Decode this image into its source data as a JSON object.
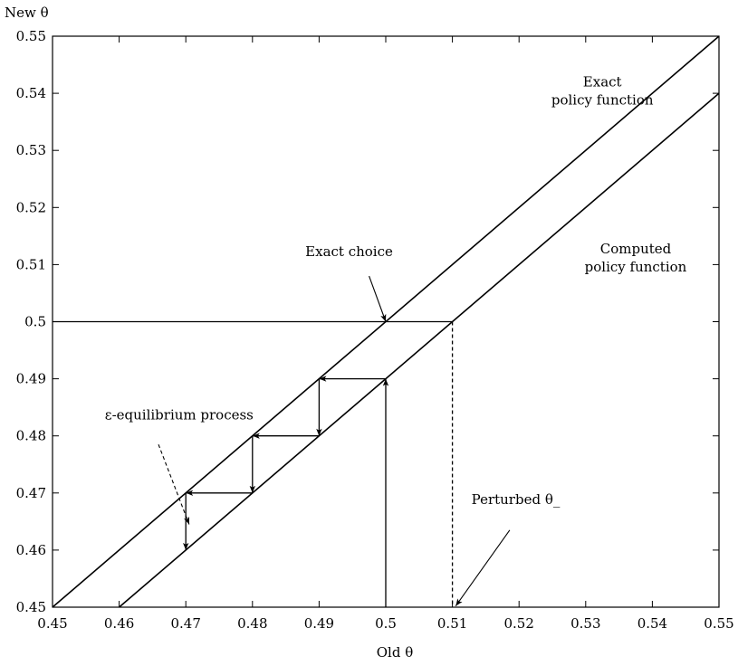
{
  "chart_data": {
    "type": "line",
    "xlabel": "Old θ",
    "ylabel": "New θ",
    "xlim": [
      0.45,
      0.55
    ],
    "ylim": [
      0.45,
      0.55
    ],
    "x_ticks": [
      "0.45",
      "0.46",
      "0.47",
      "0.48",
      "0.49",
      "0.5",
      "0.51",
      "0.52",
      "0.53",
      "0.54",
      "0.55"
    ],
    "y_ticks": [
      "0.45",
      "0.46",
      "0.47",
      "0.48",
      "0.49",
      "0.5",
      "0.51",
      "0.52",
      "0.53",
      "0.54",
      "0.55"
    ],
    "grid": false,
    "series": [
      {
        "name": "Exact policy function",
        "x": [
          0.45,
          0.55
        ],
        "y": [
          0.45,
          0.55
        ]
      },
      {
        "name": "Computed policy function",
        "x": [
          0.46,
          0.55
        ],
        "y": [
          0.45,
          0.54
        ]
      }
    ],
    "reference_lines": [
      {
        "kind": "horizontal",
        "style": "solid",
        "from": [
          0.45,
          0.5
        ],
        "to": [
          0.51,
          0.5
        ]
      },
      {
        "kind": "vertical",
        "style": "dashed",
        "from": [
          0.51,
          0.5
        ],
        "to": [
          0.51,
          0.45
        ]
      }
    ],
    "process_arrows": [
      {
        "from": [
          0.5,
          0.45
        ],
        "to": [
          0.5,
          0.49
        ]
      },
      {
        "from": [
          0.5,
          0.49
        ],
        "to": [
          0.49,
          0.49
        ]
      },
      {
        "from": [
          0.49,
          0.49
        ],
        "to": [
          0.49,
          0.48
        ]
      },
      {
        "from": [
          0.49,
          0.48
        ],
        "to": [
          0.48,
          0.48
        ]
      },
      {
        "from": [
          0.48,
          0.48
        ],
        "to": [
          0.48,
          0.47
        ]
      },
      {
        "from": [
          0.48,
          0.47
        ],
        "to": [
          0.47,
          0.47
        ]
      },
      {
        "from": [
          0.47,
          0.47
        ],
        "to": [
          0.47,
          0.46
        ]
      }
    ],
    "annotations": [
      {
        "lines": [
          "Exact",
          "policy function"
        ],
        "anchor": "middle",
        "at": [
          0.5325,
          0.5412
        ]
      },
      {
        "lines": [
          "Computed",
          "policy function"
        ],
        "anchor": "middle",
        "at": [
          0.5375,
          0.512
        ]
      },
      {
        "lines": [
          "Exact choice"
        ],
        "anchor": "middle",
        "at": [
          0.4945,
          0.5115
        ],
        "pointer": {
          "from": [
            0.4975,
            0.508
          ],
          "to": [
            0.5,
            0.5
          ],
          "style": "solid"
        }
      },
      {
        "lines": [
          "ε-equilibrium process"
        ],
        "anchor": "middle",
        "at": [
          0.469,
          0.4829
        ],
        "pointer": {
          "from": [
            0.4659,
            0.4785
          ],
          "to": [
            0.4705,
            0.4645
          ],
          "style": "dashed"
        }
      },
      {
        "lines": [
          "Perturbed θ_"
        ],
        "anchor": "middle",
        "at": [
          0.5195,
          0.4681
        ],
        "pointer": {
          "from": [
            0.5186,
            0.4635
          ],
          "to": [
            0.5105,
            0.4502
          ],
          "style": "solid"
        }
      }
    ]
  }
}
